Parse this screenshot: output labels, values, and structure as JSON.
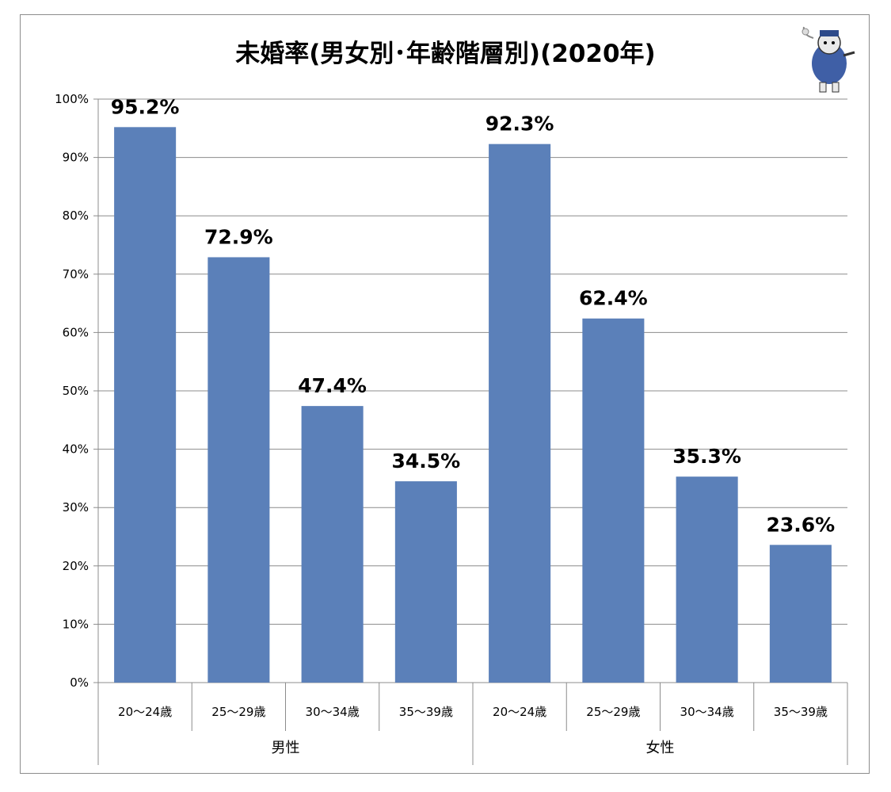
{
  "chart_data": {
    "type": "bar",
    "title": "未婚率(男女別･年齢階層別)(2020年)",
    "xlabel": "",
    "ylabel": "",
    "ylim": [
      0,
      100
    ],
    "y_ticks": [
      0,
      10,
      20,
      30,
      40,
      50,
      60,
      70,
      80,
      90,
      100
    ],
    "y_tick_labels": [
      "0%",
      "10%",
      "20%",
      "30%",
      "40%",
      "50%",
      "60%",
      "70%",
      "80%",
      "90%",
      "100%"
    ],
    "grid": true,
    "bar_color": "#5b80b9",
    "groups": [
      {
        "name": "男性",
        "categories": [
          "20～24歳",
          "25～29歳",
          "30～34歳",
          "35～39歳"
        ],
        "values": [
          95.2,
          72.9,
          47.4,
          34.5
        ],
        "labels": [
          "95.2%",
          "72.9%",
          "47.4%",
          "34.5%"
        ]
      },
      {
        "name": "女性",
        "categories": [
          "20～24歳",
          "25～29歳",
          "30～34歳",
          "35～39歳"
        ],
        "values": [
          92.3,
          62.4,
          35.3,
          23.6
        ],
        "labels": [
          "92.3%",
          "62.4%",
          "35.3%",
          "23.6%"
        ]
      }
    ]
  },
  "mascot": {
    "icon": "mascot-icon"
  }
}
